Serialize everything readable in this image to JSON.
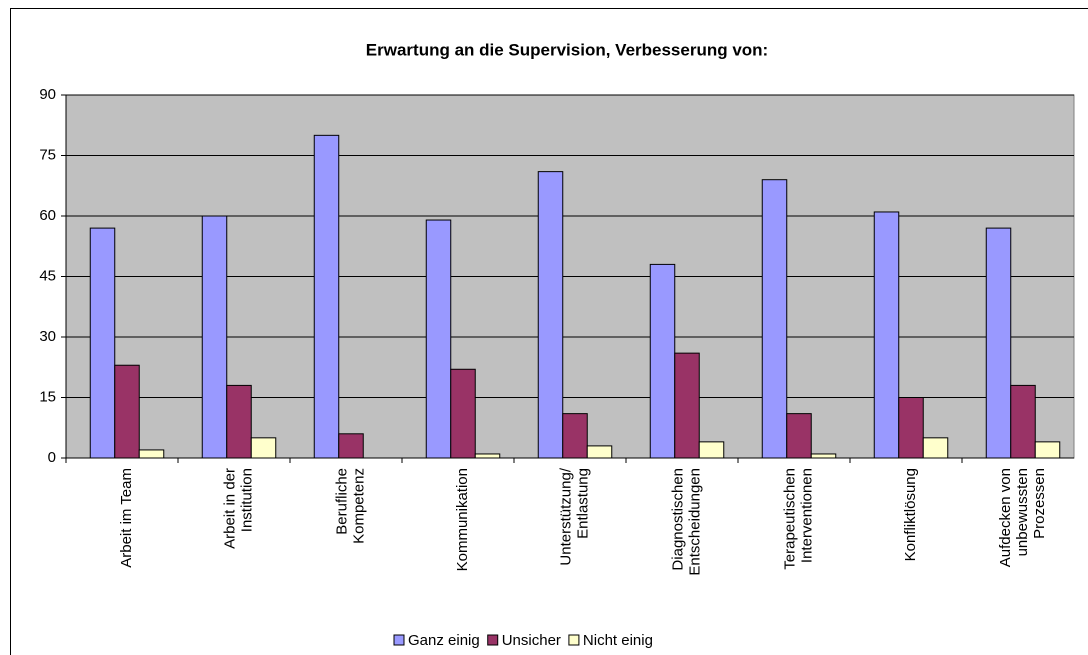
{
  "chart_data": {
    "type": "bar",
    "title": "Erwartung an die Supervision, Verbesserung von:",
    "categories": [
      [
        "Arbeit im Team"
      ],
      [
        "Arbeit in der",
        "Institution"
      ],
      [
        "Berufliche",
        "Kompetenz"
      ],
      [
        "Kommunikation"
      ],
      [
        "Unterstützung/",
        "Entlastung"
      ],
      [
        "Diagnostischen",
        "Entscheidungen"
      ],
      [
        "Terapeutischen",
        "Interventionen"
      ],
      [
        "Konfliktlösung"
      ],
      [
        "Aufdecken von",
        "unbewussten",
        "Prozessen"
      ]
    ],
    "series": [
      {
        "name": "Ganz einig",
        "color": "#9999ff",
        "values": [
          57,
          60,
          80,
          59,
          71,
          48,
          69,
          61,
          57
        ]
      },
      {
        "name": "Unsicher",
        "color": "#993366",
        "values": [
          23,
          18,
          6,
          22,
          11,
          26,
          11,
          15,
          18
        ]
      },
      {
        "name": "Nicht einig",
        "color": "#ffffcc",
        "values": [
          2,
          5,
          0,
          1,
          3,
          4,
          1,
          5,
          4
        ]
      }
    ],
    "ylim": [
      0,
      90
    ],
    "yticks": [
      0,
      15,
      30,
      45,
      60,
      75,
      90
    ],
    "grid": true,
    "legend": "bottom"
  }
}
